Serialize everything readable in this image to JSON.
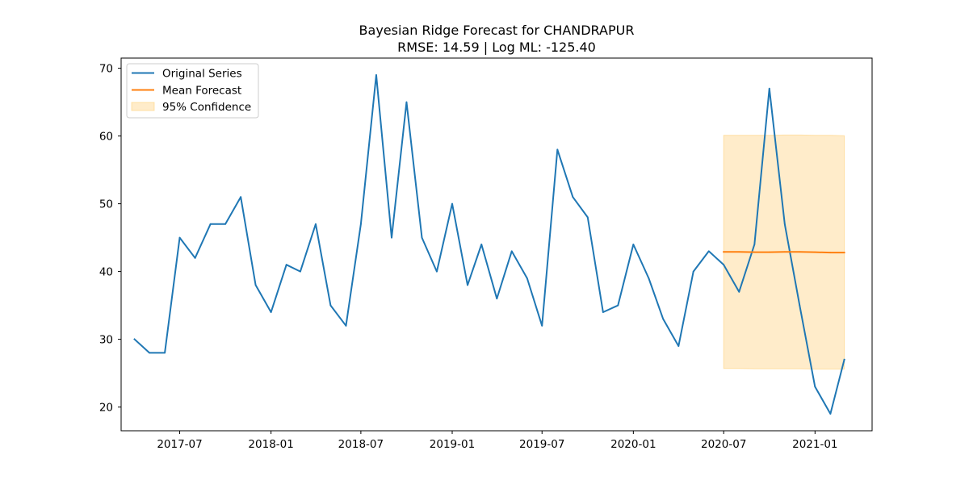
{
  "chart_data": {
    "type": "line",
    "title": "Bayesian Ridge Forecast for CHANDRAPUR",
    "subtitle": "RMSE: 14.59 | Log ML: -125.40",
    "xlabel": "",
    "ylabel": "",
    "xlim": [
      "2017-03-05",
      "2021-04-26"
    ],
    "ylim": [
      16.5,
      71.5
    ],
    "x_ticks": [
      "2017-07-01",
      "2018-01-01",
      "2018-07-01",
      "2019-01-01",
      "2019-07-01",
      "2020-01-01",
      "2020-07-01",
      "2021-01-01"
    ],
    "x_tick_labels": [
      "2017-07",
      "2018-01",
      "2018-07",
      "2019-01",
      "2019-07",
      "2020-01",
      "2020-07",
      "2021-01"
    ],
    "y_ticks": [
      20,
      30,
      40,
      50,
      60,
      70
    ],
    "y_tick_labels": [
      "20",
      "30",
      "40",
      "50",
      "60",
      "70"
    ],
    "grid": false,
    "legend_position": "top-left",
    "series": [
      {
        "name": "Original Series",
        "color": "#1f77b4",
        "x": [
          "2017-04-01",
          "2017-05-01",
          "2017-06-01",
          "2017-07-01",
          "2017-08-01",
          "2017-09-01",
          "2017-10-01",
          "2017-11-01",
          "2017-12-01",
          "2018-01-01",
          "2018-02-01",
          "2018-03-01",
          "2018-04-01",
          "2018-05-01",
          "2018-06-01",
          "2018-07-01",
          "2018-08-01",
          "2018-09-01",
          "2018-10-01",
          "2018-11-01",
          "2018-12-01",
          "2019-01-01",
          "2019-02-01",
          "2019-03-01",
          "2019-04-01",
          "2019-05-01",
          "2019-06-01",
          "2019-07-01",
          "2019-08-01",
          "2019-09-01",
          "2019-10-01",
          "2019-11-01",
          "2019-12-01",
          "2020-01-01",
          "2020-02-01",
          "2020-03-01",
          "2020-04-01",
          "2020-05-01",
          "2020-06-01",
          "2020-07-01",
          "2020-08-01",
          "2020-09-01",
          "2020-10-01",
          "2020-11-01",
          "2020-12-01",
          "2021-01-01",
          "2021-02-01",
          "2021-03-01"
        ],
        "values": [
          30,
          28,
          28,
          45,
          42,
          47,
          47,
          51,
          38,
          34,
          41,
          40,
          47,
          35,
          32,
          47,
          69,
          45,
          65,
          45,
          40,
          50,
          38,
          44,
          36,
          43,
          39,
          32,
          58,
          51,
          48,
          34,
          35,
          44,
          39,
          33,
          29,
          40,
          43,
          41,
          37,
          44,
          67,
          47,
          35,
          23,
          19,
          27
        ]
      },
      {
        "name": "Mean Forecast",
        "color": "#ff7f0e",
        "x": [
          "2020-07-01",
          "2020-08-01",
          "2020-09-01",
          "2020-10-01",
          "2020-11-01",
          "2020-12-01",
          "2021-01-01",
          "2021-02-01",
          "2021-03-01"
        ],
        "values": [
          42.9,
          42.9,
          42.85,
          42.85,
          42.9,
          42.9,
          42.85,
          42.8,
          42.8
        ]
      }
    ],
    "confidence_band": {
      "name": "95% Confidence",
      "color": "#ffc966",
      "x": [
        "2020-07-01",
        "2020-08-01",
        "2020-09-01",
        "2020-10-01",
        "2020-11-01",
        "2020-12-01",
        "2021-01-01",
        "2021-02-01",
        "2021-03-01"
      ],
      "lower": [
        25.7,
        25.7,
        25.65,
        25.65,
        25.65,
        25.65,
        25.6,
        25.6,
        25.6
      ],
      "upper": [
        60.1,
        60.1,
        60.1,
        60.1,
        60.15,
        60.15,
        60.1,
        60.1,
        60.05
      ]
    }
  }
}
